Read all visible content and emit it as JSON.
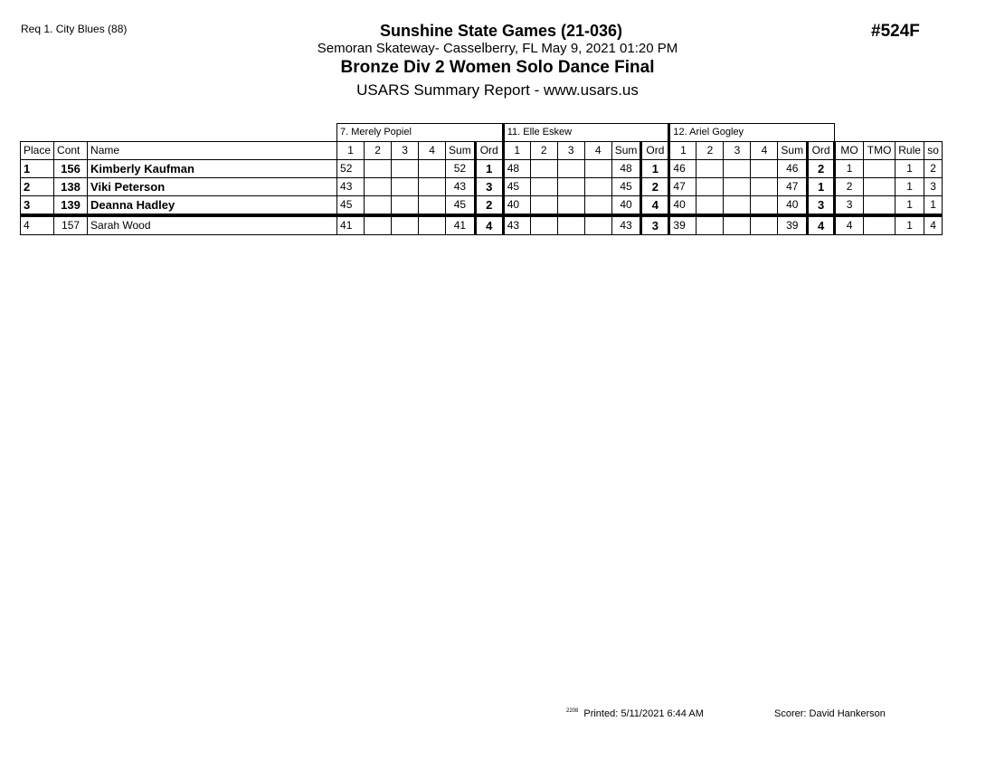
{
  "header": {
    "request": "Req  1.  City Blues (88)",
    "title": "Sunshine State Games (21-036)",
    "venue": "Semoran Skateway- Casselberry, FL  May 9, 2021  01:20 PM",
    "event": "Bronze Div 2 Women Solo Dance Final",
    "report": "USARS Summary Report - www.usars.us",
    "event_number": "#524F"
  },
  "judges": [
    "7.  Merely Popiel",
    "11.  Elle Eskew",
    "12.  Ariel Gogley"
  ],
  "columns": {
    "place": "Place",
    "cont": "Cont",
    "name": "Name",
    "judge_cols": [
      "1",
      "2",
      "3",
      "4",
      "Sum",
      "Ord"
    ],
    "mo": "MO",
    "tmo": "TMO",
    "rule": "Rule",
    "so": "so"
  },
  "rows": [
    {
      "place": "1",
      "cont": "156",
      "name": "Kimberly Kaufman",
      "bold": true,
      "judges": [
        {
          "s": [
            "52",
            "",
            "",
            ""
          ],
          "sum": "52",
          "ord": "1"
        },
        {
          "s": [
            "48",
            "",
            "",
            ""
          ],
          "sum": "48",
          "ord": "1"
        },
        {
          "s": [
            "46",
            "",
            "",
            ""
          ],
          "sum": "46",
          "ord": "2"
        }
      ],
      "mo": "1",
      "tmo": "",
      "rule": "1",
      "so": "2"
    },
    {
      "place": "2",
      "cont": "138",
      "name": "Viki Peterson",
      "bold": true,
      "judges": [
        {
          "s": [
            "43",
            "",
            "",
            ""
          ],
          "sum": "43",
          "ord": "3"
        },
        {
          "s": [
            "45",
            "",
            "",
            ""
          ],
          "sum": "45",
          "ord": "2"
        },
        {
          "s": [
            "47",
            "",
            "",
            ""
          ],
          "sum": "47",
          "ord": "1"
        }
      ],
      "mo": "2",
      "tmo": "",
      "rule": "1",
      "so": "3"
    },
    {
      "place": "3",
      "cont": "139",
      "name": "Deanna Hadley",
      "bold": true,
      "judges": [
        {
          "s": [
            "45",
            "",
            "",
            ""
          ],
          "sum": "45",
          "ord": "2"
        },
        {
          "s": [
            "40",
            "",
            "",
            ""
          ],
          "sum": "40",
          "ord": "4"
        },
        {
          "s": [
            "40",
            "",
            "",
            ""
          ],
          "sum": "40",
          "ord": "3"
        }
      ],
      "mo": "3",
      "tmo": "",
      "rule": "1",
      "so": "1"
    },
    {
      "place": "4",
      "cont": "157",
      "name": "Sarah Wood",
      "bold": false,
      "judges": [
        {
          "s": [
            "41",
            "",
            "",
            ""
          ],
          "sum": "41",
          "ord": "4"
        },
        {
          "s": [
            "43",
            "",
            "",
            ""
          ],
          "sum": "43",
          "ord": "3"
        },
        {
          "s": [
            "39",
            "",
            "",
            ""
          ],
          "sum": "39",
          "ord": "4"
        }
      ],
      "mo": "4",
      "tmo": "",
      "rule": "1",
      "so": "4"
    }
  ],
  "footer": {
    "version": "2208",
    "printed": "Printed:  5/11/2021  6:44 AM",
    "scorer": "Scorer:   David Hankerson"
  }
}
